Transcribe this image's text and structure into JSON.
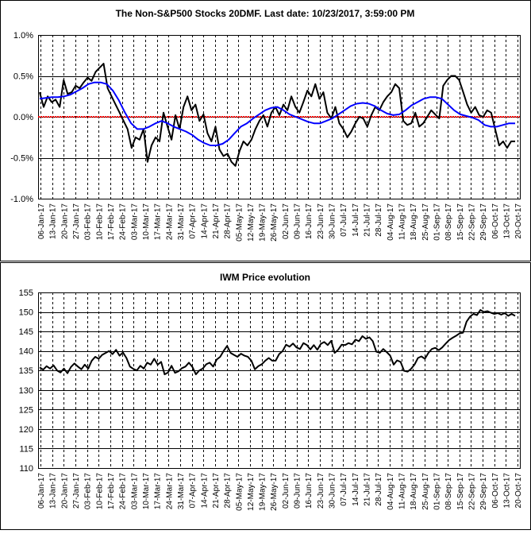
{
  "chart_data": [
    {
      "type": "line",
      "title": "The Non-S&P500 Stocks 20DMF. Last date: 10/23/2017, 3:59:00 PM",
      "ylim": [
        -0.01,
        0.01
      ],
      "y_ticks": [
        "1.0%",
        "0.5%",
        "0.0%",
        "-0.5%",
        "-1.0%"
      ],
      "y_tick_values": [
        0.01,
        0.005,
        0,
        -0.005,
        -0.01
      ],
      "grid": "horizontal solid lines, vertical dashed lines",
      "reference_line": {
        "y": 0,
        "color": "#ff0000"
      },
      "colors": {
        "series_main": "#000000",
        "series_avg": "#0000ff"
      },
      "x_labels": [
        "06-Jan-17",
        "13-Jan-17",
        "20-Jan-17",
        "27-Jan-17",
        "03-Feb-17",
        "10-Feb-17",
        "17-Feb-17",
        "24-Feb-17",
        "03-Mar-17",
        "10-Mar-17",
        "17-Mar-17",
        "24-Mar-17",
        "31-Mar-17",
        "07-Apr-17",
        "14-Apr-17",
        "21-Apr-17",
        "28-Apr-17",
        "05-May-17",
        "12-May-17",
        "19-May-17",
        "26-May-17",
        "02-Jun-17",
        "09-Jun-17",
        "16-Jun-17",
        "23-Jun-17",
        "30-Jun-17",
        "07-Jul-17",
        "14-Jul-17",
        "21-Jul-17",
        "28-Jul-17",
        "04-Aug-17",
        "11-Aug-17",
        "18-Aug-17",
        "25-Aug-17",
        "01-Sep-17",
        "08-Sep-17",
        "15-Sep-17",
        "22-Sep-17",
        "29-Sep-17",
        "06-Oct-17",
        "13-Oct-17",
        "20-Oct-17"
      ],
      "series": [
        {
          "values": [
            0.003,
            0.0012,
            0.0025,
            0.0018,
            0.0021,
            0.0012,
            0.0045,
            0.0028,
            0.003,
            0.0038,
            0.0035,
            0.0042,
            0.0048,
            0.0044,
            0.0055,
            0.006,
            0.0065,
            0.0035,
            0.0025,
            0.0015,
            0.0005,
            -0.0005,
            -0.0015,
            -0.0038,
            -0.0025,
            -0.0028,
            -0.0015,
            -0.0055,
            -0.0035,
            -0.0025,
            -0.003,
            0.0005,
            -0.0012,
            -0.0028,
            0.0002,
            -0.0015,
            0.0012,
            0.0025,
            0.0008,
            0.0015,
            -0.0005,
            0.0003,
            -0.002,
            -0.003,
            -0.0012,
            -0.004,
            -0.0048,
            -0.0045,
            -0.0055,
            -0.006,
            -0.0042,
            -0.003,
            -0.0035,
            -0.0028,
            -0.0015,
            -0.0005,
            0.0002,
            -0.0012,
            0.0005,
            0.0012,
            0.0002,
            0.0015,
            0.0008,
            0.0025,
            0.0012,
            0.0005,
            0.0018,
            0.0032,
            0.0025,
            0.004,
            0.0022,
            0.003,
            0.0005,
            -0.0002,
            0.0012,
            -0.0008,
            -0.0015,
            -0.0025,
            -0.0018,
            -0.0008,
            0.0,
            -0.0002,
            -0.0012,
            0.0002,
            0.0012,
            0.0008,
            0.0018,
            0.0025,
            0.003,
            0.004,
            0.0035,
            -0.0005,
            -0.001,
            -0.0008,
            0.0005,
            -0.0012,
            -0.0008,
            0.0,
            0.0008,
            0.0003,
            -0.0002,
            0.0038,
            0.0045,
            0.005,
            0.005,
            0.0045,
            0.003,
            0.0015,
            0.0005,
            0.0012,
            0.0002,
            0.0,
            0.0008,
            0.0005,
            -0.0015,
            -0.0035,
            -0.003,
            -0.0038,
            -0.003,
            -0.003
          ]
        },
        {
          "values": [
            0.0022,
            0.0023,
            0.0024,
            0.0024,
            0.0025,
            0.0027,
            0.0031,
            0.0035,
            0.004,
            0.0042,
            0.0042,
            0.004,
            0.0032,
            0.002,
            0.0005,
            -0.0008,
            -0.0015,
            -0.0015,
            -0.0012,
            -0.0008,
            -0.0005,
            -0.0008,
            -0.0012,
            -0.0015,
            -0.0018,
            -0.0022,
            -0.0028,
            -0.0032,
            -0.0035,
            -0.0035,
            -0.0033,
            -0.0028,
            -0.002,
            -0.0012,
            -0.0008,
            -0.0002,
            0.0003,
            0.0008,
            0.0011,
            0.0012,
            0.0008,
            0.0003,
            0.0,
            -0.0003,
            -0.0006,
            -0.0008,
            -0.0008,
            -0.0005,
            -0.0002,
            0.0003,
            0.0008,
            0.0013,
            0.0016,
            0.0017,
            0.0016,
            0.0013,
            0.0008,
            0.0004,
            0.0002,
            0.0003,
            0.0008,
            0.0014,
            0.0018,
            0.0022,
            0.0024,
            0.0024,
            0.0022,
            0.0015,
            0.0008,
            0.0003,
            0.0001,
            -0.0001,
            -0.0004,
            -0.001,
            -0.0012,
            -0.0012,
            -0.001,
            -0.0008,
            -0.0008
          ]
        }
      ]
    },
    {
      "type": "line",
      "title": "IWM Price evolution",
      "ylim": [
        110,
        155
      ],
      "y_ticks": [
        "155",
        "150",
        "145",
        "140",
        "135",
        "130",
        "125",
        "120",
        "115",
        "110"
      ],
      "y_tick_values": [
        155,
        150,
        145,
        140,
        135,
        130,
        125,
        120,
        115,
        110
      ],
      "grid": "horizontal solid lines, vertical dashed lines",
      "colors": {
        "series_main": "#000000"
      },
      "x_labels": [
        "06-Jan-17",
        "13-Jan-17",
        "20-Jan-17",
        "27-Jan-17",
        "03-Feb-17",
        "10-Feb-17",
        "17-Feb-17",
        "24-Feb-17",
        "03-Mar-17",
        "10-Mar-17",
        "17-Mar-17",
        "24-Mar-17",
        "31-Mar-17",
        "07-Apr-17",
        "14-Apr-17",
        "21-Apr-17",
        "28-Apr-17",
        "05-May-17",
        "12-May-17",
        "19-May-17",
        "26-May-17",
        "02-Jun-17",
        "09-Jun-17",
        "16-Jun-17",
        "23-Jun-17",
        "30-Jun-17",
        "07-Jul-17",
        "14-Jul-17",
        "21-Jul-17",
        "28-Jul-17",
        "04-Aug-17",
        "11-Aug-17",
        "18-Aug-17",
        "25-Aug-17",
        "01-Sep-17",
        "08-Sep-17",
        "15-Sep-17",
        "22-Sep-17",
        "29-Sep-17",
        "06-Oct-17",
        "13-Oct-17",
        "20-Oct-17"
      ],
      "series": [
        {
          "values": [
            135.8,
            135.2,
            136.1,
            135.5,
            136.3,
            135.0,
            134.5,
            135.5,
            134.3,
            135.9,
            136.8,
            136.0,
            135.3,
            136.5,
            135.5,
            137.5,
            138.5,
            138.0,
            139.0,
            139.5,
            140.0,
            139.2,
            140.3,
            138.8,
            139.6,
            138.2,
            136.0,
            135.4,
            135.0,
            136.2,
            135.5,
            137.0,
            136.5,
            138.0,
            136.5,
            137.2,
            134.0,
            134.5,
            136.2,
            134.4,
            134.8,
            135.6,
            136.0,
            137.0,
            135.9,
            134.0,
            135.0,
            135.5,
            136.6,
            137.0,
            136.0,
            137.8,
            138.5,
            140.0,
            141.3,
            139.5,
            139.0,
            138.5,
            139.3,
            138.8,
            138.5,
            137.5,
            135.3,
            136.1,
            136.6,
            137.5,
            138.2,
            137.5,
            137.5,
            139.2,
            140.0,
            141.6,
            141.1,
            141.9,
            140.9,
            140.5,
            142.0,
            141.5,
            140.4,
            141.5,
            140.3,
            141.8,
            142.3,
            141.5,
            142.6,
            139.5,
            140.3,
            141.6,
            141.5,
            142.0,
            141.7,
            142.9,
            142.5,
            143.8,
            143.1,
            143.5,
            142.5,
            139.8,
            139.5,
            140.5,
            139.7,
            138.8,
            136.5,
            137.6,
            137.2,
            134.9,
            134.7,
            135.4,
            136.5,
            138.2,
            138.6,
            138.0,
            139.5,
            140.5,
            140.8,
            140.2,
            140.9,
            141.9,
            142.8,
            143.4,
            143.9,
            144.5,
            144.7,
            147.5,
            148.8,
            149.5,
            149.2,
            150.5,
            150.0,
            150.2,
            149.8,
            149.5,
            149.7,
            149.3,
            149.7,
            149.0,
            149.5,
            149.0
          ]
        }
      ]
    }
  ]
}
